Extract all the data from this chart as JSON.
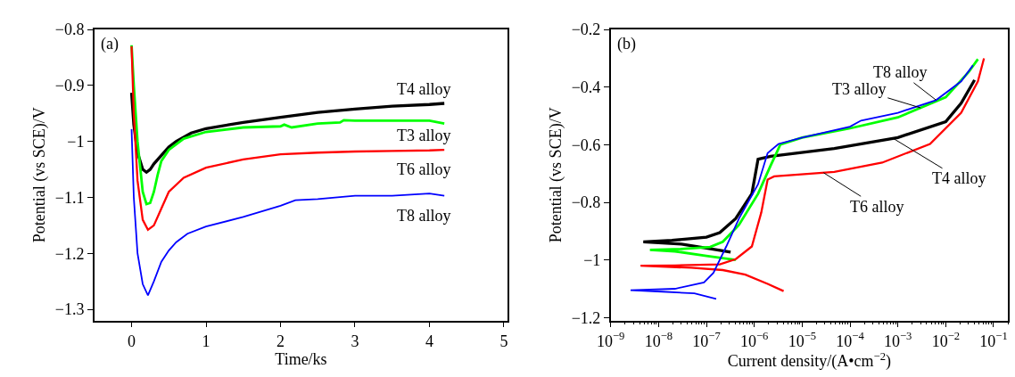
{
  "chart_data": [
    {
      "type": "line",
      "xlabel": "Time/ks",
      "ylabel": "Potential (vs SCE)/V",
      "xlim": [
        -0.5,
        5.05
      ],
      "ylim": [
        -1.32,
        -0.8
      ],
      "xticks": [
        0,
        1,
        2,
        3,
        4,
        5
      ],
      "yticks": [
        -1.3,
        -1.2,
        -1.1,
        -1.0,
        -0.9,
        -0.8
      ],
      "grid": false,
      "legend": false,
      "annotations": [
        "(a)"
      ],
      "series": [
        {
          "name": "T4 alloy",
          "color": "#000000",
          "x": [
            0,
            0.03,
            0.08,
            0.15,
            0.2,
            0.25,
            0.3,
            0.4,
            0.5,
            0.6,
            0.8,
            1.0,
            1.5,
            2.0,
            2.5,
            3.0,
            3.5,
            4.0,
            4.2
          ],
          "values": [
            -0.913,
            -0.97,
            -1.02,
            -1.05,
            -1.055,
            -1.05,
            -1.04,
            -1.025,
            -1.01,
            -1.0,
            -0.985,
            -0.977,
            -0.966,
            -0.957,
            -0.948,
            -0.942,
            -0.937,
            -0.934,
            -0.932
          ]
        },
        {
          "name": "T3 alloy",
          "color": "#00ff00",
          "x": [
            0,
            0.03,
            0.08,
            0.15,
            0.2,
            0.25,
            0.3,
            0.35,
            0.4,
            0.5,
            0.7,
            1.0,
            1.5,
            2.0,
            2.05,
            2.15,
            2.5,
            2.8,
            2.85,
            3.0,
            3.5,
            4.0,
            4.2
          ],
          "values": [
            -0.828,
            -0.9,
            -1.0,
            -1.09,
            -1.112,
            -1.11,
            -1.09,
            -1.06,
            -1.035,
            -1.015,
            -0.995,
            -0.983,
            -0.975,
            -0.973,
            -0.97,
            -0.975,
            -0.968,
            -0.966,
            -0.962,
            -0.963,
            -0.963,
            -0.963,
            -0.968
          ]
        },
        {
          "name": "T6 alloy",
          "color": "#ff0000",
          "x": [
            0,
            0.03,
            0.08,
            0.15,
            0.22,
            0.3,
            0.4,
            0.5,
            0.7,
            1.0,
            1.5,
            2.0,
            2.5,
            3.0,
            3.5,
            4.0,
            4.2
          ],
          "values": [
            -0.83,
            -0.95,
            -1.07,
            -1.14,
            -1.158,
            -1.15,
            -1.12,
            -1.09,
            -1.065,
            -1.047,
            -1.032,
            -1.023,
            -1.02,
            -1.018,
            -1.017,
            -1.016,
            -1.015
          ]
        },
        {
          "name": "T8 alloy",
          "color": "#0000ff",
          "x": [
            0,
            0.03,
            0.08,
            0.15,
            0.22,
            0.3,
            0.4,
            0.5,
            0.6,
            0.75,
            1.0,
            1.5,
            2.0,
            2.2,
            2.5,
            3.0,
            3.5,
            4.0,
            4.2
          ],
          "values": [
            -0.978,
            -1.1,
            -1.2,
            -1.255,
            -1.275,
            -1.25,
            -1.215,
            -1.195,
            -1.18,
            -1.165,
            -1.152,
            -1.135,
            -1.115,
            -1.105,
            -1.103,
            -1.097,
            -1.097,
            -1.093,
            -1.097
          ]
        }
      ]
    },
    {
      "type": "line",
      "log": "x",
      "xlabel": "Current density/(A•cm$^{−2}$)",
      "ylabel": "Potential (vs SCE)/V",
      "xlim": [
        1e-09,
        0.2
      ],
      "ylim": [
        -1.21,
        -0.2
      ],
      "xticks": [
        {
          "value": 1e-09,
          "label": "10$^{−9}$"
        },
        {
          "value": 1e-08,
          "label": "10$^{−8}$"
        },
        {
          "value": 1e-07,
          "label": "10$^{−7}$"
        },
        {
          "value": 1e-06,
          "label": "10$^{−6}$"
        },
        {
          "value": 1e-05,
          "label": "10$^{−5}$"
        },
        {
          "value": 0.0001,
          "label": "10$^{−4}$"
        },
        {
          "value": 0.001,
          "label": "10$^{−3}$"
        },
        {
          "value": 0.01,
          "label": "10$^{−2}$"
        },
        {
          "value": 0.1,
          "label": "10$^{−1}$"
        }
      ],
      "yticks": [
        -1.2,
        -1.0,
        -0.8,
        -0.6,
        -0.4,
        -0.2
      ],
      "grid": false,
      "legend": false,
      "annotations": [
        "(b)",
        {
          "text": "T8 alloy",
          "x": 0.0063,
          "y": -0.445
        },
        {
          "text": "T3 alloy",
          "x": 0.003,
          "y": -0.472
        },
        {
          "text": "T4 alloy",
          "x": 0.0008,
          "y": -0.578
        },
        {
          "text": "T6 alloy",
          "x": 2.8e-05,
          "y": -0.697
        }
      ],
      "series": [
        {
          "color": "#000000",
          "x": [
            3.2e-07,
            1e-07,
            3e-08,
            4.8e-09,
            1.9e-08,
            1e-07,
            1.9e-07,
            4.1e-07,
            8.9e-07,
            1.2e-06,
            2.2e-06,
            4.7e-05,
            0.001,
            0.01,
            0.021,
            0.04
          ],
          "values": [
            -0.973,
            -0.959,
            -0.945,
            -0.937,
            -0.932,
            -0.921,
            -0.905,
            -0.856,
            -0.77,
            -0.65,
            -0.64,
            -0.613,
            -0.575,
            -0.52,
            -0.456,
            -0.375
          ]
        },
        {
          "color": "#00ff00",
          "x": [
            4.1e-07,
            1e-07,
            2.2e-08,
            6.6e-09,
            3e-08,
            1.2e-07,
            2.2e-07,
            4.8e-07,
            1.2e-06,
            2.2e-06,
            3e-06,
            3.5e-06,
            1e-05,
            0.0001,
            0.001,
            0.01,
            0.03,
            0.047
          ],
          "values": [
            -1.0,
            -0.986,
            -0.97,
            -0.965,
            -0.962,
            -0.955,
            -0.937,
            -0.878,
            -0.77,
            -0.672,
            -0.624,
            -0.599,
            -0.575,
            -0.543,
            -0.505,
            -0.435,
            -0.348,
            -0.303
          ]
        },
        {
          "color": "#ff0000",
          "x": [
            4.1e-06,
            1.9e-06,
            6.5e-07,
            2.2e-07,
            4.8e-08,
            4.2e-09,
            2.2e-08,
            1.9e-07,
            4.1e-07,
            8.9e-07,
            1.4e-06,
            1.9e-06,
            2.6e-06,
            4.7e-05,
            0.00047,
            0.0047,
            0.021,
            0.047,
            0.063
          ],
          "values": [
            -1.108,
            -1.083,
            -1.051,
            -1.035,
            -1.027,
            -1.02,
            -1.019,
            -1.015,
            -0.997,
            -0.953,
            -0.835,
            -0.721,
            -0.71,
            -0.694,
            -0.662,
            -0.597,
            -0.489,
            -0.38,
            -0.3
          ]
        },
        {
          "color": "#0000ff",
          "x": [
            1.6e-07,
            5.6e-08,
            1.2e-08,
            2.6e-09,
            2.2e-08,
            8.9e-08,
            1.4e-07,
            2.6e-07,
            4.8e-07,
            1.2e-06,
            1.9e-06,
            3.2e-06,
            1e-05,
            0.0001,
            0.00017,
            0.001,
            0.0063,
            0.021,
            0.037
          ],
          "values": [
            -1.135,
            -1.116,
            -1.11,
            -1.105,
            -1.1,
            -1.078,
            -1.045,
            -0.953,
            -0.856,
            -0.737,
            -0.629,
            -0.597,
            -0.575,
            -0.537,
            -0.516,
            -0.489,
            -0.445,
            -0.38,
            -0.324
          ]
        }
      ]
    }
  ]
}
